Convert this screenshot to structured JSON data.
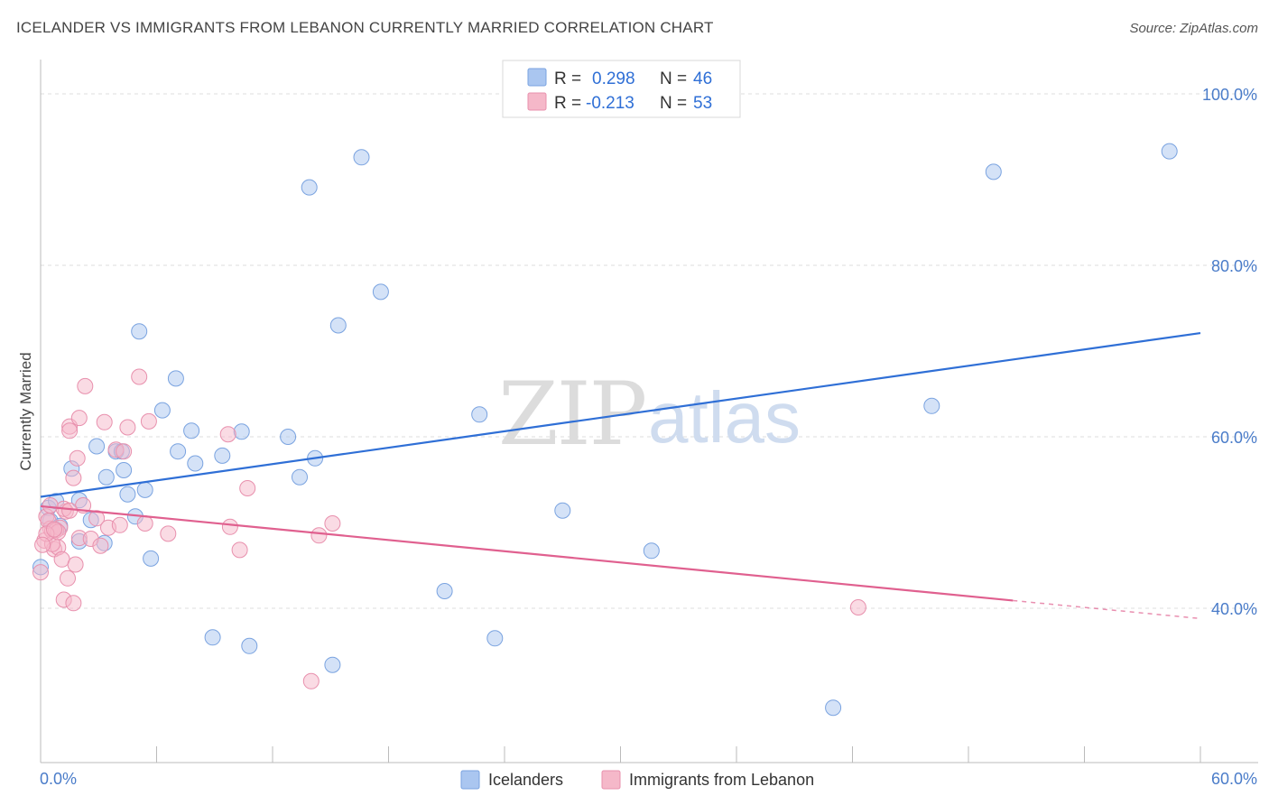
{
  "title": "ICELANDER VS IMMIGRANTS FROM LEBANON CURRENTLY MARRIED CORRELATION CHART",
  "source": "Source: ZipAtlas.com",
  "watermark": {
    "zip": "ZIP",
    "atlas": "atlas"
  },
  "legend": {
    "r_label": "R =",
    "n_label": "N =",
    "rows": [
      {
        "r": "0.298",
        "n": "46",
        "color": "#aac6f0"
      },
      {
        "r": "-0.213",
        "n": "53",
        "color": "#f5b8c9"
      }
    ]
  },
  "bottom_legend": [
    "Icelanders",
    "Immigrants from Lebanon"
  ],
  "chart_data": {
    "type": "scatter",
    "ylabel": "Currently Married",
    "x_range": [
      0,
      60
    ],
    "y_range": [
      22,
      104
    ],
    "x_tick_labels": {
      "left": "0.0%",
      "right": "60.0%"
    },
    "y_ticks": [
      {
        "value": 100,
        "label": "100.0%"
      },
      {
        "value": 80,
        "label": "80.0%"
      },
      {
        "value": 60,
        "label": "60.0%"
      },
      {
        "value": 40,
        "label": "40.0%"
      }
    ],
    "colors": {
      "blue": "#2f6fd6",
      "pink": "#e0608f"
    },
    "series": [
      {
        "name": "Icelanders",
        "color": "#2f6fd6",
        "trend": {
          "x": [
            0,
            60
          ],
          "y": [
            53.0,
            72.1
          ]
        },
        "points": [
          [
            0.4,
            51.7
          ],
          [
            0.8,
            52.5
          ],
          [
            0.5,
            50.2
          ],
          [
            1.0,
            49.6
          ],
          [
            1.6,
            56.3
          ],
          [
            2.0,
            52.6
          ],
          [
            2.6,
            50.3
          ],
          [
            2.9,
            58.9
          ],
          [
            3.3,
            47.6
          ],
          [
            3.4,
            55.3
          ],
          [
            3.9,
            58.3
          ],
          [
            4.2,
            58.3
          ],
          [
            4.3,
            56.1
          ],
          [
            4.5,
            53.3
          ],
          [
            4.9,
            50.7
          ],
          [
            5.1,
            72.3
          ],
          [
            5.4,
            53.8
          ],
          [
            5.7,
            45.8
          ],
          [
            6.3,
            63.1
          ],
          [
            7.0,
            66.8
          ],
          [
            7.1,
            58.3
          ],
          [
            7.8,
            60.7
          ],
          [
            8.0,
            56.9
          ],
          [
            8.9,
            36.6
          ],
          [
            9.4,
            57.8
          ],
          [
            10.4,
            60.6
          ],
          [
            10.8,
            35.6
          ],
          [
            12.8,
            60.0
          ],
          [
            13.4,
            55.3
          ],
          [
            13.9,
            89.1
          ],
          [
            14.2,
            57.5
          ],
          [
            15.1,
            33.4
          ],
          [
            15.4,
            73.0
          ],
          [
            16.6,
            92.6
          ],
          [
            17.6,
            76.9
          ],
          [
            20.9,
            42.0
          ],
          [
            22.7,
            62.6
          ],
          [
            23.5,
            36.5
          ],
          [
            27.0,
            51.4
          ],
          [
            31.6,
            46.7
          ],
          [
            41.0,
            28.4
          ],
          [
            46.1,
            63.6
          ],
          [
            49.3,
            90.9
          ],
          [
            58.4,
            93.3
          ],
          [
            0.0,
            44.8
          ],
          [
            2.0,
            47.8
          ]
        ]
      },
      {
        "name": "Immigrants from Lebanon",
        "color": "#e0608f",
        "trend": {
          "x": [
            0,
            50.3
          ],
          "y": [
            51.9,
            40.9
          ]
        },
        "trend_dashed": {
          "x": [
            50.3,
            60
          ],
          "y": [
            40.9,
            38.8
          ]
        },
        "points": [
          [
            0.2,
            47.9
          ],
          [
            0.3,
            50.7
          ],
          [
            0.5,
            49.3
          ],
          [
            0.6,
            49.0
          ],
          [
            0.7,
            46.9
          ],
          [
            0.9,
            47.1
          ],
          [
            1.0,
            49.4
          ],
          [
            1.1,
            45.7
          ],
          [
            1.2,
            41.0
          ],
          [
            1.3,
            51.3
          ],
          [
            1.4,
            43.5
          ],
          [
            1.5,
            61.2
          ],
          [
            1.5,
            60.7
          ],
          [
            1.7,
            40.6
          ],
          [
            1.7,
            55.2
          ],
          [
            1.8,
            45.1
          ],
          [
            1.9,
            57.5
          ],
          [
            2.0,
            62.2
          ],
          [
            2.0,
            48.2
          ],
          [
            2.2,
            52.0
          ],
          [
            2.3,
            65.9
          ],
          [
            2.6,
            48.1
          ],
          [
            2.9,
            50.5
          ],
          [
            3.1,
            47.3
          ],
          [
            3.3,
            61.7
          ],
          [
            3.5,
            49.4
          ],
          [
            3.9,
            58.5
          ],
          [
            4.1,
            49.7
          ],
          [
            4.3,
            58.3
          ],
          [
            4.5,
            61.1
          ],
          [
            5.1,
            67.0
          ],
          [
            5.4,
            49.9
          ],
          [
            5.6,
            61.8
          ],
          [
            6.6,
            48.7
          ],
          [
            9.7,
            60.3
          ],
          [
            9.8,
            49.5
          ],
          [
            10.3,
            46.8
          ],
          [
            10.7,
            54.0
          ],
          [
            14.0,
            31.5
          ],
          [
            14.4,
            48.5
          ],
          [
            15.1,
            49.9
          ],
          [
            42.3,
            40.1
          ],
          [
            0.4,
            50.2
          ],
          [
            0.8,
            49.1
          ],
          [
            0.6,
            47.5
          ],
          [
            1.2,
            51.6
          ],
          [
            0.9,
            48.9
          ],
          [
            0.3,
            48.7
          ],
          [
            1.5,
            51.4
          ],
          [
            0.5,
            52.0
          ],
          [
            0.7,
            49.2
          ],
          [
            0.1,
            47.4
          ],
          [
            0.0,
            44.2
          ]
        ]
      }
    ]
  }
}
